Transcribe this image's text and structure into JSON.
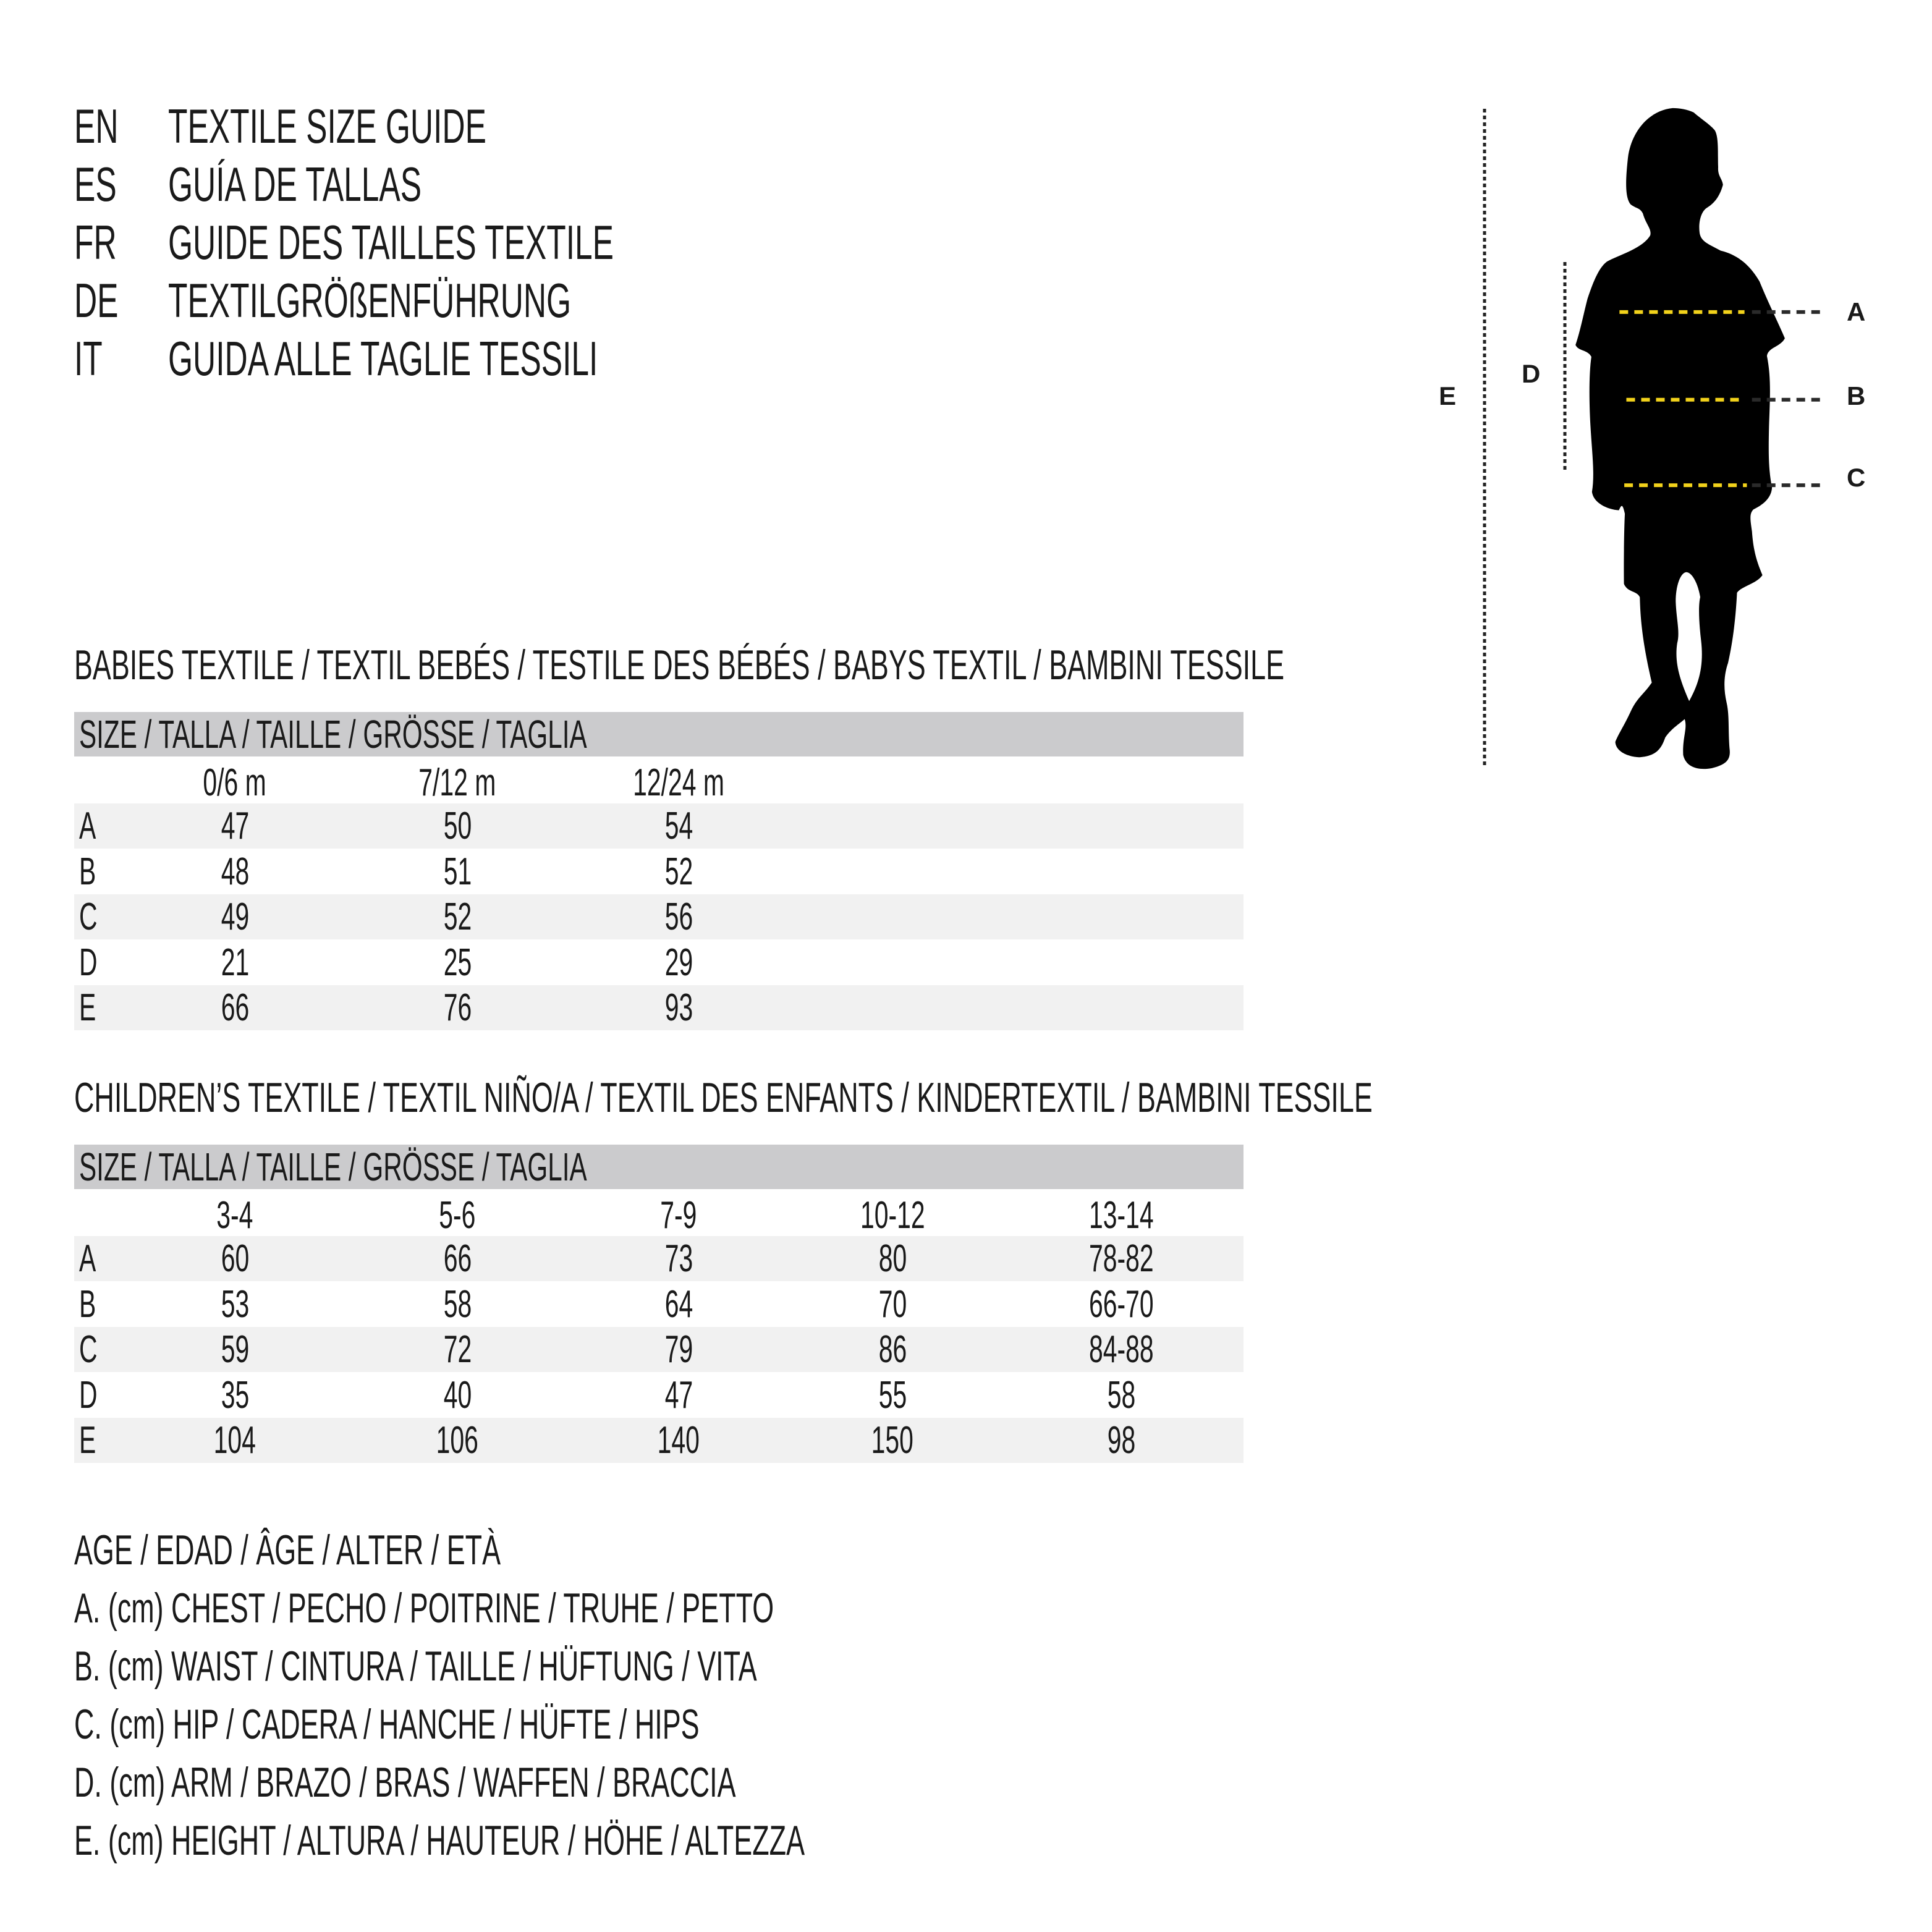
{
  "header": [
    {
      "code": "EN",
      "title": "TEXTILE SIZE GUIDE"
    },
    {
      "code": "ES",
      "title": "GUÍA DE TALLAS"
    },
    {
      "code": "FR",
      "title": "GUIDE DES TAILLES TEXTILE"
    },
    {
      "code": "DE",
      "title": "TEXTILGRÖßENFÜHRUNG"
    },
    {
      "code": "IT",
      "title": "GUIDA ALLE TAGLIE TESSILI"
    }
  ],
  "babies": {
    "title": "BABIES TEXTILE / TEXTIL BEBÉS / TESTILE DES BÉBÉS / BABYS TEXTIL / BAMBINI TESSILE",
    "size_label": "SIZE / TALLA / TAILLE / GRÖSSE / TAGLIA",
    "columns": [
      "0/6 m",
      "7/12 m",
      "12/24 m"
    ],
    "rows": [
      {
        "label": "A",
        "values": [
          "47",
          "50",
          "54"
        ]
      },
      {
        "label": "B",
        "values": [
          "48",
          "51",
          "52"
        ]
      },
      {
        "label": "C",
        "values": [
          "49",
          "52",
          "56"
        ]
      },
      {
        "label": "D",
        "values": [
          "21",
          "25",
          "29"
        ]
      },
      {
        "label": "E",
        "values": [
          "66",
          "76",
          "93"
        ]
      }
    ]
  },
  "children": {
    "title": "CHILDREN’S TEXTILE / TEXTIL NIÑO/A / TEXTIL DES ENFANTS / KINDERTEXTIL / BAMBINI TESSILE",
    "size_label": "SIZE / TALLA / TAILLE / GRÖSSE / TAGLIA",
    "columns": [
      "3-4",
      "5-6",
      "7-9",
      "10-12",
      "13-14"
    ],
    "rows": [
      {
        "label": "A",
        "values": [
          "60",
          "66",
          "73",
          "80",
          "78-82"
        ]
      },
      {
        "label": "B",
        "values": [
          "53",
          "58",
          "64",
          "70",
          "66-70"
        ]
      },
      {
        "label": "C",
        "values": [
          "59",
          "72",
          "79",
          "86",
          "84-88"
        ]
      },
      {
        "label": "D",
        "values": [
          "35",
          "40",
          "47",
          "55",
          "58"
        ]
      },
      {
        "label": "E",
        "values": [
          "104",
          "106",
          "140",
          "150",
          "98"
        ]
      }
    ]
  },
  "legend": [
    "AGE / EDAD / ÂGE / ALTER / ETÀ",
    "A. (cm) CHEST / PECHO / POITRINE / TRUHE / PETTO",
    "B. (cm) WAIST / CINTURA / TAILLE / HÜFTUNG / VITA",
    "C. (cm) HIP / CADERA / HANCHE / HÜFTE / HIPS",
    "D. (cm) ARM / BRAZO / BRAS / WAFFEN / BRACCIA",
    "E. (cm) HEIGHT / ALTURA / HAUTEUR / HÖHE / ALTEZZA"
  ],
  "figure": {
    "icon": "child-silhouette-icon",
    "labels": {
      "a": "A",
      "b": "B",
      "c": "C",
      "d": "D",
      "e": "E"
    },
    "colors": {
      "measure_line": "#f2d21b",
      "guide_line": "#222222",
      "band": "#f1f1f1",
      "bar": "#cbcbcd"
    }
  }
}
